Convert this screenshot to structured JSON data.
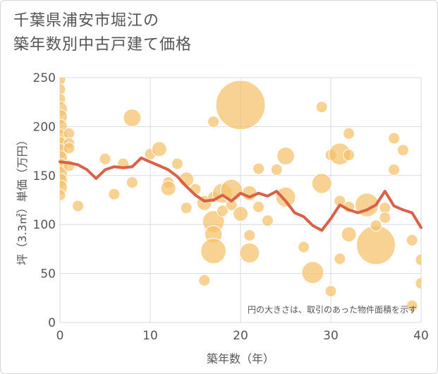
{
  "chart_data": {
    "type": "scatter",
    "title_lines": [
      "千葉県浦安市堀江の",
      "築年数別中古戸建て価格"
    ],
    "xlabel": "築年数（年）",
    "ylabel": "坪（3.3㎡）単価（万円）",
    "xlim": [
      0,
      40
    ],
    "ylim": [
      0,
      250
    ],
    "x_ticks": [
      0,
      10,
      20,
      30,
      40
    ],
    "y_ticks": [
      0,
      50,
      100,
      150,
      200,
      250
    ],
    "grid": true,
    "note": "円の大きさは、取引のあった物件面積を示す",
    "bubble_color": "#f5c06a",
    "line_color": "#d9614a",
    "bubbles": [
      {
        "x": 0,
        "y": 248,
        "s": 1
      },
      {
        "x": 0,
        "y": 238,
        "s": 1
      },
      {
        "x": 0,
        "y": 228,
        "s": 1
      },
      {
        "x": 0,
        "y": 218,
        "s": 2
      },
      {
        "x": 0,
        "y": 210,
        "s": 2
      },
      {
        "x": 0,
        "y": 200,
        "s": 2
      },
      {
        "x": 0,
        "y": 190,
        "s": 2
      },
      {
        "x": 0,
        "y": 182,
        "s": 2
      },
      {
        "x": 0,
        "y": 175,
        "s": 2
      },
      {
        "x": 0,
        "y": 168,
        "s": 2
      },
      {
        "x": 0,
        "y": 160,
        "s": 2
      },
      {
        "x": 0,
        "y": 152,
        "s": 2
      },
      {
        "x": 0,
        "y": 145,
        "s": 2
      },
      {
        "x": 0,
        "y": 138,
        "s": 2
      },
      {
        "x": 0,
        "y": 130,
        "s": 1
      },
      {
        "x": 1,
        "y": 193,
        "s": 1
      },
      {
        "x": 1,
        "y": 183,
        "s": 1
      },
      {
        "x": 1,
        "y": 178,
        "s": 1
      },
      {
        "x": 1,
        "y": 160,
        "s": 1
      },
      {
        "x": 2,
        "y": 119,
        "s": 1
      },
      {
        "x": 5,
        "y": 167,
        "s": 1
      },
      {
        "x": 6,
        "y": 131,
        "s": 1
      },
      {
        "x": 7,
        "y": 162,
        "s": 1
      },
      {
        "x": 8,
        "y": 209,
        "s": 3
      },
      {
        "x": 8,
        "y": 143,
        "s": 1
      },
      {
        "x": 10,
        "y": 172,
        "s": 1
      },
      {
        "x": 11,
        "y": 177,
        "s": 2
      },
      {
        "x": 12,
        "y": 143,
        "s": 1
      },
      {
        "x": 12,
        "y": 137,
        "s": 2
      },
      {
        "x": 13,
        "y": 162,
        "s": 1
      },
      {
        "x": 14,
        "y": 146,
        "s": 2
      },
      {
        "x": 14,
        "y": 117,
        "s": 1
      },
      {
        "x": 15,
        "y": 136,
        "s": 1
      },
      {
        "x": 16,
        "y": 43,
        "s": 1
      },
      {
        "x": 16,
        "y": 122,
        "s": 2
      },
      {
        "x": 17,
        "y": 205,
        "s": 1
      },
      {
        "x": 17,
        "y": 128,
        "s": 1
      },
      {
        "x": 17,
        "y": 103,
        "s": 5
      },
      {
        "x": 17,
        "y": 90,
        "s": 3
      },
      {
        "x": 17,
        "y": 73,
        "s": 7
      },
      {
        "x": 18,
        "y": 132,
        "s": 4
      },
      {
        "x": 18,
        "y": 114,
        "s": 1
      },
      {
        "x": 19,
        "y": 135,
        "s": 5
      },
      {
        "x": 19,
        "y": 120,
        "s": 1
      },
      {
        "x": 20,
        "y": 222,
        "s": 30
      },
      {
        "x": 20,
        "y": 111,
        "s": 2
      },
      {
        "x": 21,
        "y": 132,
        "s": 2
      },
      {
        "x": 21,
        "y": 89,
        "s": 1
      },
      {
        "x": 21,
        "y": 71,
        "s": 4
      },
      {
        "x": 22,
        "y": 157,
        "s": 1
      },
      {
        "x": 22,
        "y": 118,
        "s": 1
      },
      {
        "x": 23,
        "y": 104,
        "s": 1
      },
      {
        "x": 24,
        "y": 156,
        "s": 1
      },
      {
        "x": 25,
        "y": 170,
        "s": 3
      },
      {
        "x": 25,
        "y": 128,
        "s": 4
      },
      {
        "x": 27,
        "y": 77,
        "s": 1
      },
      {
        "x": 28,
        "y": 51,
        "s": 5
      },
      {
        "x": 29,
        "y": 220,
        "s": 1
      },
      {
        "x": 29,
        "y": 142,
        "s": 4
      },
      {
        "x": 30,
        "y": 171,
        "s": 1
      },
      {
        "x": 30,
        "y": 32,
        "s": 1
      },
      {
        "x": 31,
        "y": 124,
        "s": 1
      },
      {
        "x": 31,
        "y": 65,
        "s": 1
      },
      {
        "x": 31,
        "y": 172,
        "s": 5
      },
      {
        "x": 32,
        "y": 193,
        "s": 1
      },
      {
        "x": 32,
        "y": 171,
        "s": 1
      },
      {
        "x": 32,
        "y": 118,
        "s": 1
      },
      {
        "x": 32,
        "y": 90,
        "s": 2
      },
      {
        "x": 34,
        "y": 120,
        "s": 6
      },
      {
        "x": 35,
        "y": 79,
        "s": 18
      },
      {
        "x": 35,
        "y": 99,
        "s": 1
      },
      {
        "x": 36,
        "y": 117,
        "s": 1
      },
      {
        "x": 36,
        "y": 107,
        "s": 1
      },
      {
        "x": 37,
        "y": 188,
        "s": 1
      },
      {
        "x": 37,
        "y": 156,
        "s": 1
      },
      {
        "x": 38,
        "y": 176,
        "s": 1
      },
      {
        "x": 39,
        "y": 84,
        "s": 1
      },
      {
        "x": 39,
        "y": 17,
        "s": 1
      },
      {
        "x": 40,
        "y": 64,
        "s": 1
      },
      {
        "x": 40,
        "y": 40,
        "s": 1
      }
    ],
    "series": [
      {
        "type": "line",
        "x": [
          0,
          1,
          2,
          3,
          4,
          5,
          6,
          7,
          8,
          9,
          10,
          11,
          12,
          13,
          14,
          15,
          16,
          17,
          18,
          19,
          20,
          21,
          22,
          23,
          24,
          25,
          26,
          27,
          28,
          29,
          30,
          31,
          32,
          33,
          34,
          35,
          36,
          37,
          38,
          39,
          40
        ],
        "values": [
          164,
          163,
          161,
          156,
          147,
          156,
          159,
          158,
          159,
          168,
          164,
          160,
          156,
          149,
          139,
          130,
          124,
          125,
          130,
          124,
          132,
          128,
          132,
          129,
          134,
          124,
          112,
          108,
          99,
          94,
          106,
          120,
          115,
          112,
          115,
          120,
          134,
          119,
          115,
          112,
          97
        ]
      }
    ]
  }
}
